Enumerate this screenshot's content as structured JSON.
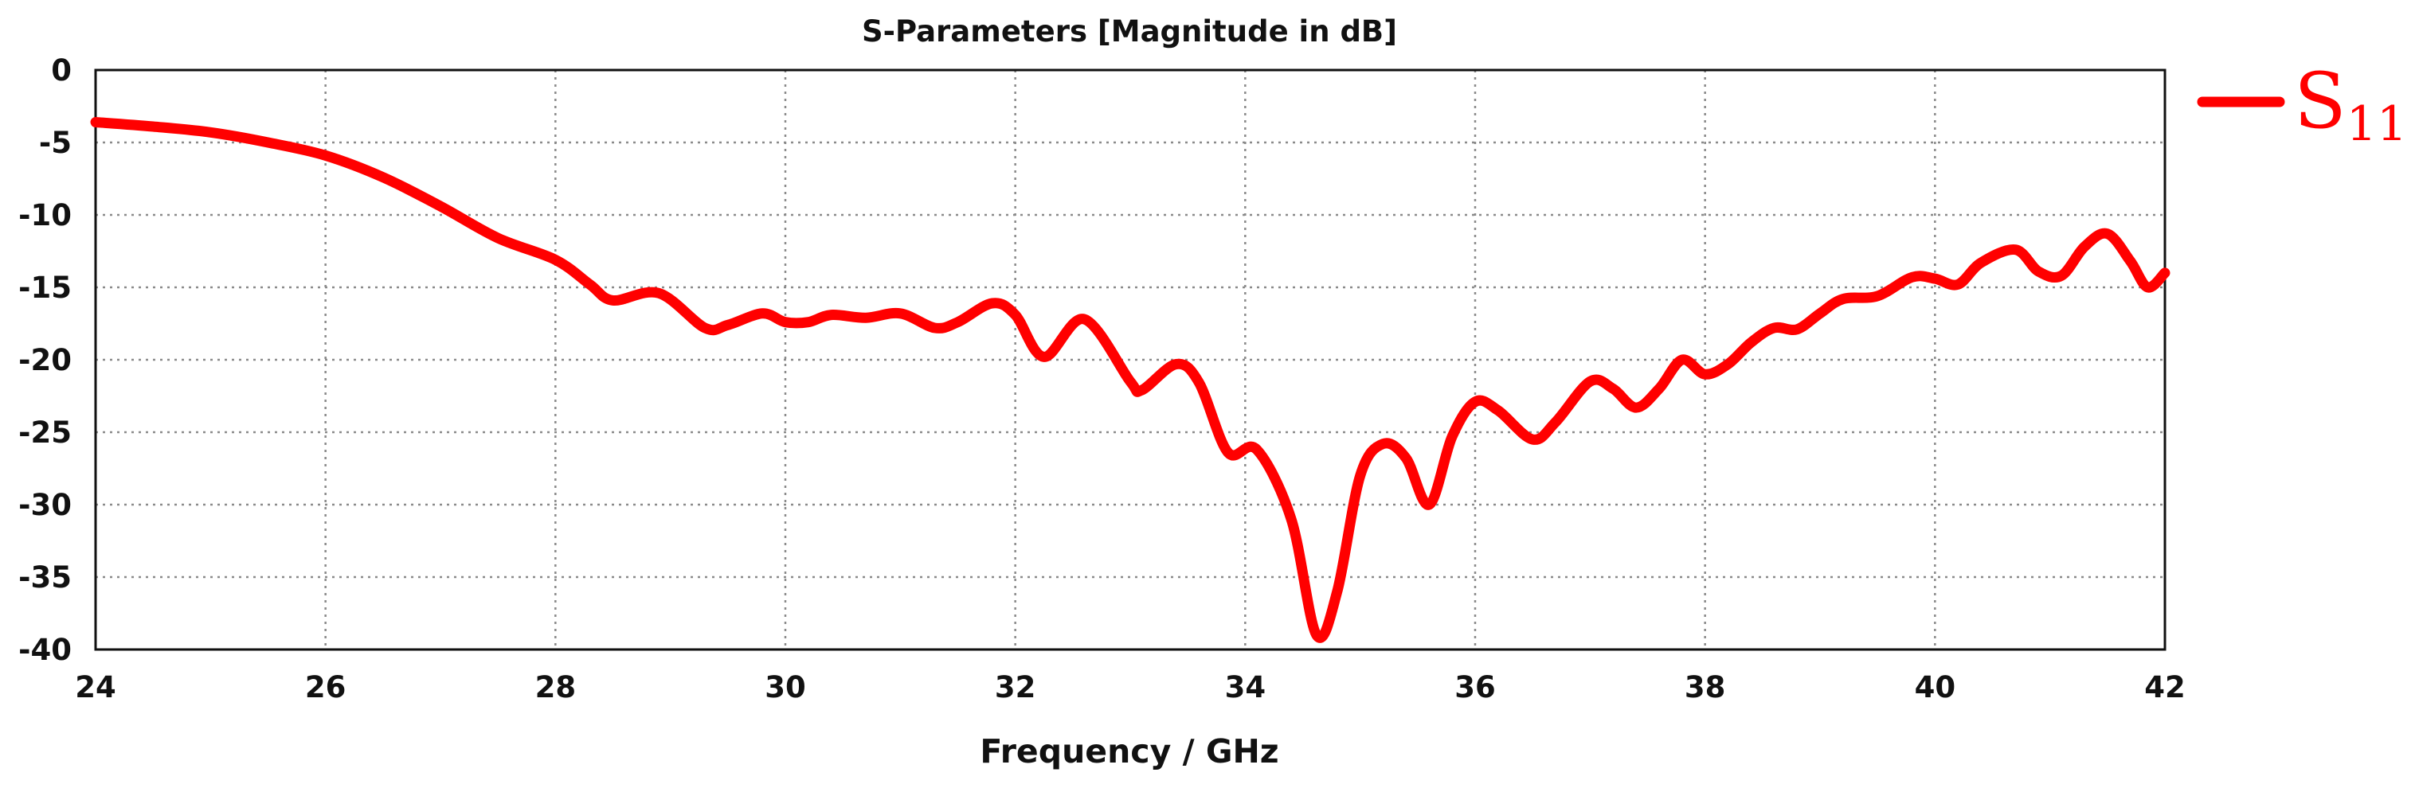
{
  "chart_data": {
    "type": "line",
    "title": "S-Parameters [Magnitude in dB]",
    "xlabel": "Frequency / GHz",
    "ylabel": "",
    "xlim": [
      24,
      42
    ],
    "ylim": [
      -40,
      0
    ],
    "xticks": [
      "24",
      "26",
      "28",
      "30",
      "32",
      "34",
      "36",
      "38",
      "40",
      "42"
    ],
    "yticks": [
      "0",
      "-5",
      "-10",
      "-15",
      "-20",
      "-25",
      "-30",
      "-35",
      "-40"
    ],
    "grid": true,
    "legend_position": "right",
    "legend": {
      "main": "S",
      "sub": "11"
    },
    "series": [
      {
        "name": "S11",
        "color": "#ff0000",
        "x": [
          24.0,
          24.5,
          25.0,
          25.5,
          26.0,
          26.5,
          27.0,
          27.5,
          28.0,
          28.3,
          28.5,
          28.9,
          29.3,
          29.5,
          29.8,
          30.0,
          30.2,
          30.4,
          30.7,
          31.0,
          31.3,
          31.5,
          31.8,
          32.0,
          32.25,
          32.6,
          33.0,
          33.1,
          33.4,
          33.6,
          33.85,
          34.1,
          34.4,
          34.62,
          34.8,
          35.0,
          35.2,
          35.4,
          35.6,
          35.8,
          36.0,
          36.2,
          36.5,
          36.7,
          37.0,
          37.2,
          37.4,
          37.6,
          37.8,
          38.0,
          38.2,
          38.4,
          38.6,
          38.8,
          39.0,
          39.2,
          39.5,
          39.8,
          40.0,
          40.2,
          40.4,
          40.7,
          40.9,
          41.1,
          41.3,
          41.5,
          41.7,
          41.85,
          42.0
        ],
        "values": [
          -3.6,
          -3.9,
          -4.3,
          -5.0,
          -5.9,
          -7.4,
          -9.4,
          -11.6,
          -13.1,
          -14.8,
          -15.9,
          -15.4,
          -17.8,
          -17.6,
          -16.8,
          -17.4,
          -17.4,
          -16.9,
          -17.1,
          -16.8,
          -17.8,
          -17.4,
          -16.1,
          -16.9,
          -19.8,
          -17.2,
          -21.5,
          -22.1,
          -20.3,
          -21.6,
          -26.4,
          -26.2,
          -31.0,
          -39.0,
          -36.0,
          -28.0,
          -25.8,
          -26.8,
          -30.0,
          -25.3,
          -22.9,
          -23.5,
          -25.5,
          -24.3,
          -21.5,
          -22.0,
          -23.3,
          -22.0,
          -20.0,
          -21.0,
          -20.3,
          -18.8,
          -17.8,
          -17.9,
          -16.8,
          -15.8,
          -15.6,
          -14.3,
          -14.4,
          -14.8,
          -13.3,
          -12.4,
          -13.9,
          -14.2,
          -12.2,
          -11.3,
          -13.2,
          -15.0,
          -14.0
        ]
      }
    ]
  }
}
